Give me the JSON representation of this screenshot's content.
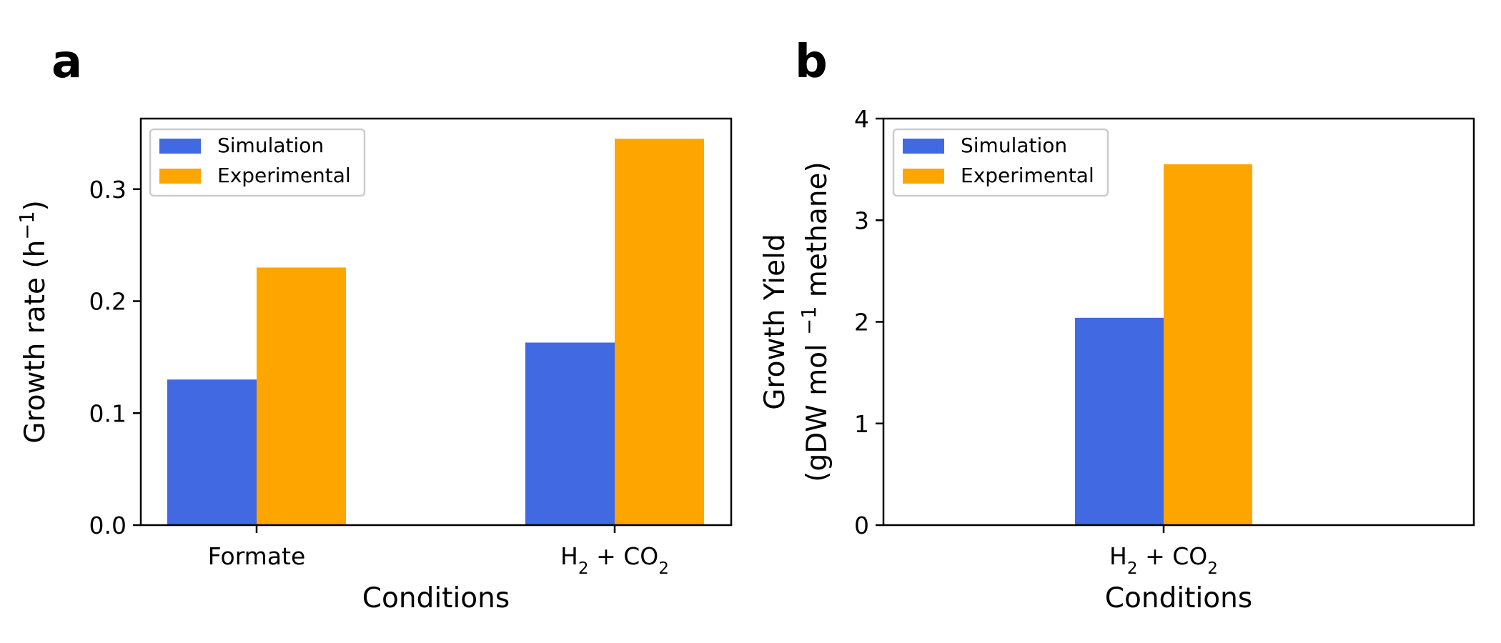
{
  "chart_data": [
    {
      "type": "bar",
      "panel_label": "a",
      "categories": [
        "Formate",
        "H2 + CO2"
      ],
      "category_labels": [
        [
          {
            "t": "Formate",
            "sub": false
          }
        ],
        [
          {
            "t": "H",
            "sub": false
          },
          {
            "t": "2",
            "sub": true
          },
          {
            "t": " + CO",
            "sub": false
          },
          {
            "t": "2",
            "sub": true
          }
        ]
      ],
      "series": [
        {
          "name": "Simulation",
          "color": "#4169e1",
          "values": [
            0.13,
            0.163
          ]
        },
        {
          "name": "Experimental",
          "color": "#ffa500",
          "values": [
            0.23,
            0.345
          ]
        }
      ],
      "xlabel": "Conditions",
      "ylabel": [
        {
          "t": "Growth rate (h",
          "sup": false
        },
        {
          "t": "−1",
          "sup": true
        },
        {
          "t": ")",
          "sup": false
        }
      ],
      "ylim": [
        0,
        0.363
      ],
      "yticks": [
        0.0,
        0.1,
        0.2,
        0.3
      ],
      "ytick_labels": [
        "0.0",
        "0.1",
        "0.2",
        "0.3"
      ],
      "legend": "top-left",
      "grid": false
    },
    {
      "type": "bar",
      "panel_label": "b",
      "categories": [
        "H2 + CO2"
      ],
      "category_labels": [
        [
          {
            "t": "H",
            "sub": false
          },
          {
            "t": "2",
            "sub": true
          },
          {
            "t": " + CO",
            "sub": false
          },
          {
            "t": "2",
            "sub": true
          }
        ]
      ],
      "series": [
        {
          "name": "Simulation",
          "color": "#4169e1",
          "values": [
            2.04
          ]
        },
        {
          "name": "Experimental",
          "color": "#ffa500",
          "values": [
            3.55
          ]
        }
      ],
      "xlabel": "Conditions",
      "ylabel_line1": "Growth Yield",
      "ylabel_line2": [
        {
          "t": "(gDW mol ",
          "sup": false
        },
        {
          "t": "−1",
          "sup": true
        },
        {
          "t": " methane)",
          "sup": false
        }
      ],
      "ylim": [
        0,
        4
      ],
      "yticks": [
        0,
        1,
        2,
        3,
        4
      ],
      "ytick_labels": [
        "0",
        "1",
        "2",
        "3",
        "4"
      ],
      "legend": "top-left",
      "grid": false
    }
  ]
}
